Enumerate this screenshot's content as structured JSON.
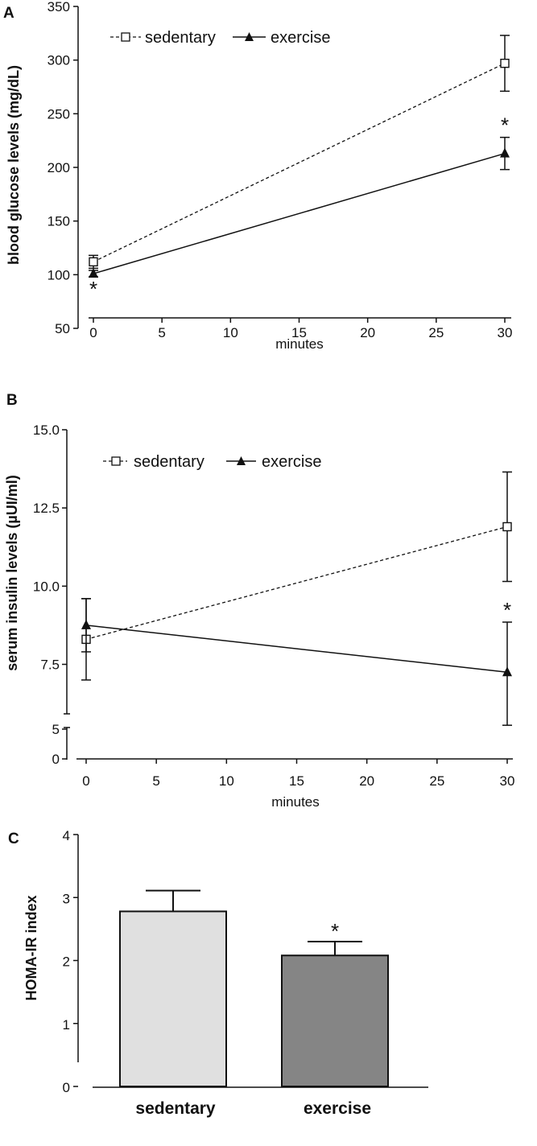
{
  "chart_data": [
    {
      "panel": "A",
      "type": "line",
      "xlabel": "minutes",
      "ylabel": "blood glucose levels (mg/dL)",
      "xlim": [
        0,
        30
      ],
      "ylim": [
        50,
        350
      ],
      "x_ticks": [
        0,
        5,
        10,
        15,
        20,
        25,
        30
      ],
      "y_ticks": [
        50,
        100,
        150,
        200,
        250,
        300,
        350
      ],
      "x": [
        0,
        30
      ],
      "legend_position": "top-left",
      "series": [
        {
          "name": "sedentary",
          "marker": "open-square",
          "line": "dashed",
          "values": [
            112,
            297
          ],
          "errors": [
            6,
            26
          ]
        },
        {
          "name": "exercise",
          "marker": "filled-triangle",
          "line": "solid",
          "values": [
            101,
            213
          ],
          "errors": [
            3,
            15
          ]
        }
      ],
      "annotations": [
        {
          "text": "*",
          "x": 0,
          "series": "exercise",
          "position": "below"
        },
        {
          "text": "*",
          "x": 30,
          "series": "exercise",
          "position": "above"
        }
      ]
    },
    {
      "panel": "B",
      "type": "line",
      "xlabel": "minutes",
      "ylabel": "serum insulin levels (µUI/ml)",
      "xlim": [
        0,
        30
      ],
      "ylim": [
        0,
        15
      ],
      "axis_break": [
        5,
        5.5
      ],
      "x_ticks": [
        0,
        5,
        10,
        15,
        20,
        25,
        30
      ],
      "y_ticks_upper": [
        "7.5",
        "10.0",
        "12.5",
        "15.0"
      ],
      "y_ticks_lower": [
        "0",
        "5"
      ],
      "x": [
        0,
        30
      ],
      "legend_position": "top-left",
      "series": [
        {
          "name": "sedentary",
          "marker": "open-square",
          "line": "dashed",
          "values": [
            8.3,
            11.9
          ],
          "errors": [
            1.3,
            1.75
          ]
        },
        {
          "name": "exercise",
          "marker": "filled-triangle",
          "line": "solid",
          "values": [
            8.75,
            7.25
          ],
          "errors": [
            0.85,
            1.6
          ]
        }
      ],
      "annotations": [
        {
          "text": "*",
          "x": 30,
          "series": "exercise",
          "position": "above"
        }
      ]
    },
    {
      "panel": "C",
      "type": "bar",
      "ylabel": "HOMA-IR index",
      "ylim": [
        0,
        4
      ],
      "y_ticks": [
        0,
        1,
        2,
        3,
        4
      ],
      "categories": [
        "sedentary",
        "exercise"
      ],
      "values": [
        2.78,
        2.08
      ],
      "errors": [
        0.33,
        0.22
      ],
      "colors": [
        "#e0e0e0",
        "#858585"
      ],
      "annotations": [
        {
          "text": "*",
          "category": "exercise",
          "position": "above"
        }
      ]
    }
  ]
}
